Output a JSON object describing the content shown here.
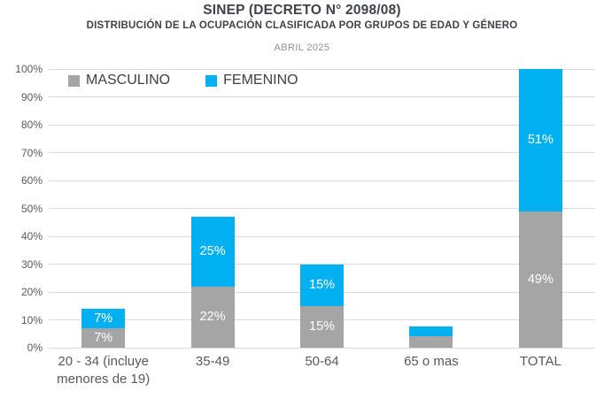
{
  "header": {
    "title": "SINEP (DECRETO N° 2098/08)",
    "subtitle": "DISTRIBUCIÓN DE LA OCUPACIÓN CLASIFICADA POR GRUPOS DE EDAD Y GÉNERO",
    "period": "ABRIL 2025"
  },
  "colors": {
    "masculino": "#a5a5a5",
    "femenino": "#00b0f0",
    "gridline": "#d9d9d9",
    "axis_text": "#595959",
    "title_text": "#3e424a"
  },
  "chart_data": {
    "type": "bar",
    "stacked": true,
    "title": "SINEP (DECRETO N° 2098/08)",
    "subtitle": "DISTRIBUCIÓN DE LA OCUPACIÓN CLASIFICADA POR GRUPOS DE EDAD Y GÉNERO",
    "period": "ABRIL 2025",
    "categories": [
      "20 - 34 (incluye menores de 19)",
      "35-49",
      "50-64",
      "65 o mas",
      "TOTAL"
    ],
    "series": [
      {
        "name": "MASCULINO",
        "color": "#a5a5a5",
        "values": [
          7,
          22,
          15,
          4,
          49
        ],
        "labels": [
          "7%",
          "22%",
          "15%",
          "",
          "49%"
        ]
      },
      {
        "name": "FEMENINO",
        "color": "#00b0f0",
        "values": [
          7,
          25,
          15,
          3.5,
          51
        ],
        "labels": [
          "7%",
          "25%",
          "15%",
          "",
          "51%"
        ]
      }
    ],
    "y_ticks": [
      "0%",
      "10%",
      "20%",
      "30%",
      "40%",
      "50%",
      "60%",
      "70%",
      "80%",
      "90%",
      "100%"
    ],
    "ylim": [
      0,
      100
    ],
    "grid": true,
    "legend_position": "top-left-inside"
  }
}
